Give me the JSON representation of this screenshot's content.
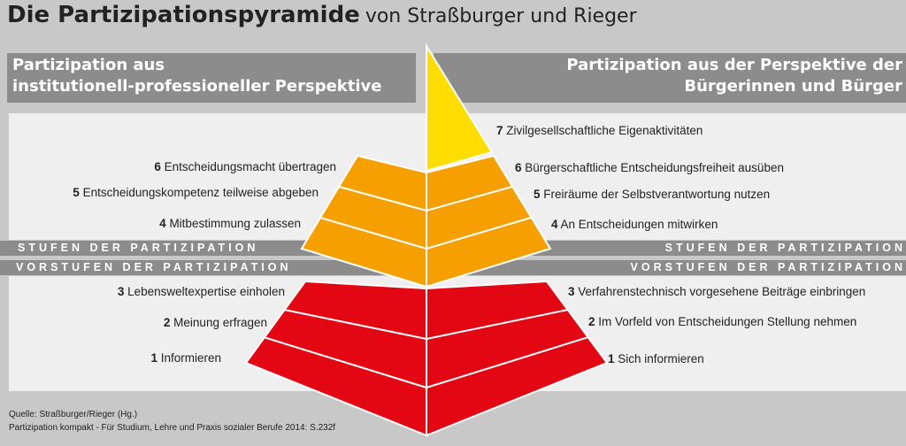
{
  "title": {
    "main": "Die Partizipationspyramide",
    "sub": "von Straßburger und Rieger"
  },
  "left_header": {
    "line1": "Partizipation aus",
    "line2": "institutionell-professioneller Perspektive"
  },
  "right_header": {
    "line1": "Partizipation aus der Perspektive  der",
    "line2": "Bürgerinnen und Bürger"
  },
  "band_stufen": "STUFEN DER PARTIZIPATION",
  "band_vorstufen": "VORSTUFEN DER PARTIZIPATION",
  "left_levels": [
    {
      "num": "6",
      "text": "Entscheidungsmacht übertragen"
    },
    {
      "num": "5",
      "text": "Entscheidungskompetenz teilweise  abgeben"
    },
    {
      "num": "4",
      "text": "Mitbestimmung zulassen"
    },
    {
      "num": "3",
      "text": "Lebensweltexpertise einholen"
    },
    {
      "num": "2",
      "text": "Meinung erfragen"
    },
    {
      "num": "1",
      "text": "Informieren"
    }
  ],
  "right_levels": [
    {
      "num": "7",
      "text": "Zivilgesellschaftliche Eigenaktivitäten"
    },
    {
      "num": "6",
      "text": "Bürgerschaftliche Entscheidungsfreiheit ausüben"
    },
    {
      "num": "5",
      "text": "Freiräume der Selbstverantwortung nutzen"
    },
    {
      "num": "4",
      "text": "An Entscheidungen mitwirken"
    },
    {
      "num": "3",
      "text": "Verfahrenstechnisch vorgesehene Beiträge einbringen"
    },
    {
      "num": "2",
      "text": "Im Vorfeld von Entscheidungen Stellung nehmen"
    },
    {
      "num": "1",
      "text": "Sich informieren"
    }
  ],
  "source": {
    "line1": "Quelle: Straßburger/Rieger (Hg.)",
    "line2": "Partizipation kompakt - Für Studium, Lehre und Praxis sozialer Berufe 2014: S.232f"
  },
  "colors": {
    "yellow": "#ffdd00",
    "orange": "#f5a000",
    "red": "#e30613",
    "gray": "#8c8c8c"
  }
}
